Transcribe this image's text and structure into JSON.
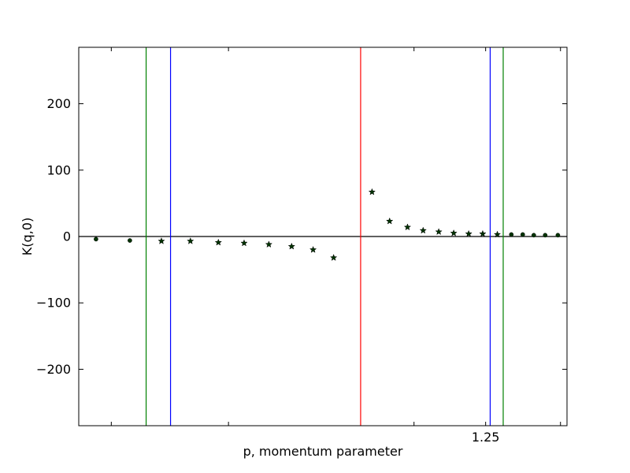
{
  "chart_data": {
    "type": "scatter",
    "xlabel": "p, momentum parameter",
    "ylabel": "K(q,0)",
    "xlim": [
      0.0,
      1.5
    ],
    "ylim": [
      -285,
      285
    ],
    "yticks": [
      -200,
      -100,
      0,
      100,
      200
    ],
    "ytick_labels": [
      "−200",
      "−100",
      "0",
      "100",
      "200"
    ],
    "xtick_labels_shown": [
      {
        "value": 1.25,
        "label": "1.25"
      }
    ],
    "xticks_minor": [
      0.1,
      0.46,
      1.03,
      1.25,
      1.48
    ],
    "grid": false,
    "baseline": {
      "y": 0,
      "color": "#000000"
    },
    "vlines": [
      {
        "x": 0.207,
        "color": "#008000"
      },
      {
        "x": 0.282,
        "color": "#0000ff"
      },
      {
        "x": 0.866,
        "color": "#ff0000"
      },
      {
        "x": 1.264,
        "color": "#0000ff"
      },
      {
        "x": 1.304,
        "color": "#008000"
      }
    ],
    "series": [
      {
        "marker": "circle",
        "color": "#003300",
        "points": [
          {
            "x": 0.053,
            "y": -4
          },
          {
            "x": 0.157,
            "y": -6
          },
          {
            "x": 1.329,
            "y": 3
          },
          {
            "x": 1.364,
            "y": 3
          },
          {
            "x": 1.398,
            "y": 2
          },
          {
            "x": 1.433,
            "y": 2
          },
          {
            "x": 1.472,
            "y": 2
          }
        ]
      },
      {
        "marker": "star",
        "color": "#003300",
        "points": [
          {
            "x": 0.254,
            "y": -7
          },
          {
            "x": 0.343,
            "y": -7
          },
          {
            "x": 0.429,
            "y": -9
          },
          {
            "x": 0.508,
            "y": -10
          },
          {
            "x": 0.584,
            "y": -12
          },
          {
            "x": 0.654,
            "y": -15
          },
          {
            "x": 0.72,
            "y": -20
          },
          {
            "x": 0.783,
            "y": -32
          },
          {
            "x": 0.901,
            "y": 67
          },
          {
            "x": 0.955,
            "y": 23
          },
          {
            "x": 1.01,
            "y": 14
          },
          {
            "x": 1.058,
            "y": 9
          },
          {
            "x": 1.106,
            "y": 7
          },
          {
            "x": 1.152,
            "y": 5
          },
          {
            "x": 1.198,
            "y": 4
          },
          {
            "x": 1.241,
            "y": 4
          },
          {
            "x": 1.286,
            "y": 3
          }
        ]
      }
    ]
  }
}
